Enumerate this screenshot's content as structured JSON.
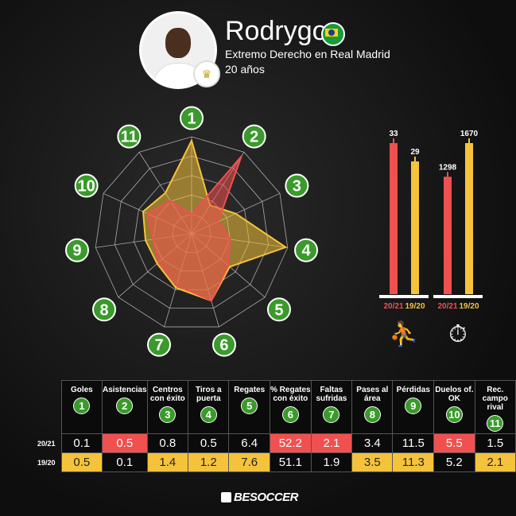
{
  "player": {
    "name": "Rodrygo",
    "position": "Extremo Derecho en Real Madrid",
    "age": "20 años",
    "flag_icon": "brazil-flag-icon"
  },
  "colors": {
    "s2021": "#f05050",
    "s1920": "#f5c33b",
    "badge": "#3a9a2b"
  },
  "brand": "BESOCCER",
  "chart_data": [
    {
      "type": "radar",
      "axes": [
        "1",
        "2",
        "3",
        "4",
        "5",
        "6",
        "7",
        "8",
        "9",
        "10",
        "11"
      ],
      "rings": 5,
      "series": [
        {
          "name": "20/21",
          "levels": [
            0.2,
            0.95,
            0.3,
            0.4,
            0.5,
            0.72,
            0.55,
            0.45,
            0.4,
            0.5,
            0.4
          ]
        },
        {
          "name": "19/20",
          "levels": [
            0.96,
            0.35,
            0.5,
            0.98,
            0.52,
            0.72,
            0.58,
            0.47,
            0.48,
            0.55,
            0.5
          ]
        }
      ]
    },
    {
      "type": "bar",
      "icon": "player-dribbling-icon",
      "categories": [
        "20/21",
        "19/20"
      ],
      "values": [
        33,
        29
      ],
      "ymax": 33
    },
    {
      "type": "bar",
      "icon": "stopwatch-icon",
      "categories": [
        "20/21",
        "19/20"
      ],
      "values": [
        1298,
        1670
      ],
      "ymax": 1670
    },
    {
      "type": "table",
      "headers": [
        "Goles",
        "Asistencias",
        "Centros con éxito",
        "Tiros a puerta",
        "Regates",
        "% Regates con éxito",
        "Faltas sufridas",
        "Pases al área",
        "Pérdidas",
        "Duelos of. OK",
        "Rec. campo rival"
      ],
      "rows": [
        {
          "label": "20/21",
          "values": [
            "0.1",
            "0.5",
            "0.8",
            "0.5",
            "6.4",
            "52.2",
            "2.1",
            "3.4",
            "11.5",
            "5.5",
            "1.5"
          ],
          "highlight": [
            false,
            true,
            false,
            false,
            false,
            true,
            true,
            false,
            false,
            true,
            false
          ]
        },
        {
          "label": "19/20",
          "values": [
            "0.5",
            "0.1",
            "1.4",
            "1.2",
            "7.6",
            "51.1",
            "1.9",
            "3.5",
            "11.3",
            "5.2",
            "2.1"
          ],
          "highlight": [
            true,
            false,
            true,
            true,
            true,
            false,
            false,
            true,
            true,
            false,
            true
          ]
        }
      ]
    }
  ]
}
